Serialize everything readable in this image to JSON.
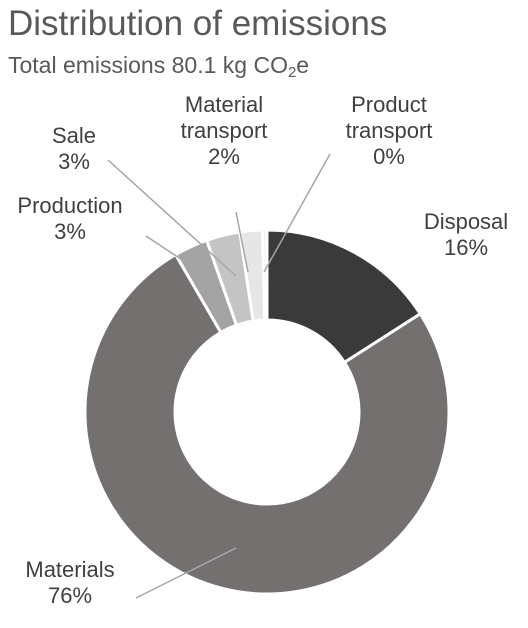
{
  "title": "Distribution of emissions",
  "subtitle": {
    "prefix": "Total emissions 80.1 kg CO",
    "subscript": "2",
    "suffix": "e"
  },
  "chart_data": {
    "type": "pie",
    "donut": true,
    "title": "Distribution of emissions",
    "subtitle": "Total emissions 80.1 kg CO2e",
    "order": "clockwise from 12 o'clock",
    "series": [
      {
        "name": "Disposal",
        "value": 16,
        "value_label": "16%",
        "color": "#3a3a3a",
        "label_lines": [
          "Disposal",
          "16%"
        ]
      },
      {
        "name": "Materials",
        "value": 76,
        "value_label": "76%",
        "color": "#747070",
        "label_lines": [
          "Materials",
          "76%"
        ]
      },
      {
        "name": "Production",
        "value": 3,
        "value_label": "3%",
        "color": "#a3a3a3",
        "label_lines": [
          "Production",
          "3%"
        ]
      },
      {
        "name": "Sale",
        "value": 3,
        "value_label": "3%",
        "color": "#c4c4c4",
        "label_lines": [
          "Sale",
          "3%"
        ]
      },
      {
        "name": "Material transport",
        "value": 2,
        "value_label": "2%",
        "color": "#e6e6e6",
        "label_lines": [
          "Material",
          "transport",
          "2%"
        ]
      },
      {
        "name": "Product transport",
        "value": 0.4,
        "value_label": "0%",
        "color": "#f2f2f2",
        "label_lines": [
          "Product",
          "transport",
          "0%"
        ]
      }
    ],
    "legend": "none",
    "leader_line_color": "#a6a6a6"
  }
}
